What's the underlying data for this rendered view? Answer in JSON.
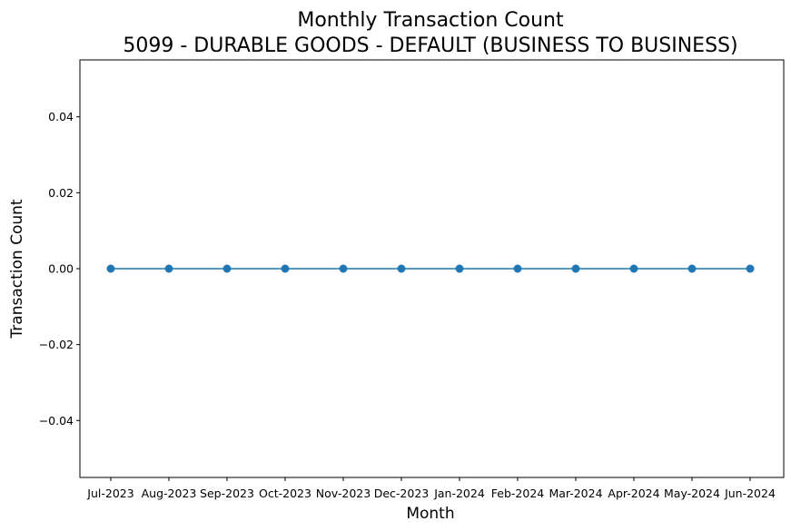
{
  "chart_data": {
    "type": "line",
    "title": "Monthly Transaction Count",
    "subtitle": "5099 - DURABLE GOODS - DEFAULT (BUSINESS TO BUSINESS)",
    "xlabel": "Month",
    "ylabel": "Transaction Count",
    "categories": [
      "Jul-2023",
      "Aug-2023",
      "Sep-2023",
      "Oct-2023",
      "Nov-2023",
      "Dec-2023",
      "Jan-2024",
      "Feb-2024",
      "Mar-2024",
      "Apr-2024",
      "May-2024",
      "Jun-2024"
    ],
    "series": [
      {
        "values": [
          0,
          0,
          0,
          0,
          0,
          0,
          0,
          0,
          0,
          0,
          0,
          0
        ]
      }
    ],
    "ylim": [
      -0.055,
      0.055
    ],
    "yticks": [
      -0.04,
      -0.02,
      0.0,
      0.02,
      0.04
    ],
    "ytick_labels": [
      "−0.04",
      "−0.02",
      "0.00",
      "0.02",
      "0.04"
    ],
    "grid": false,
    "legend": "none",
    "colors": {
      "line": "#1f77b4",
      "marker": "#1f77b4",
      "axes": "#000000"
    }
  }
}
